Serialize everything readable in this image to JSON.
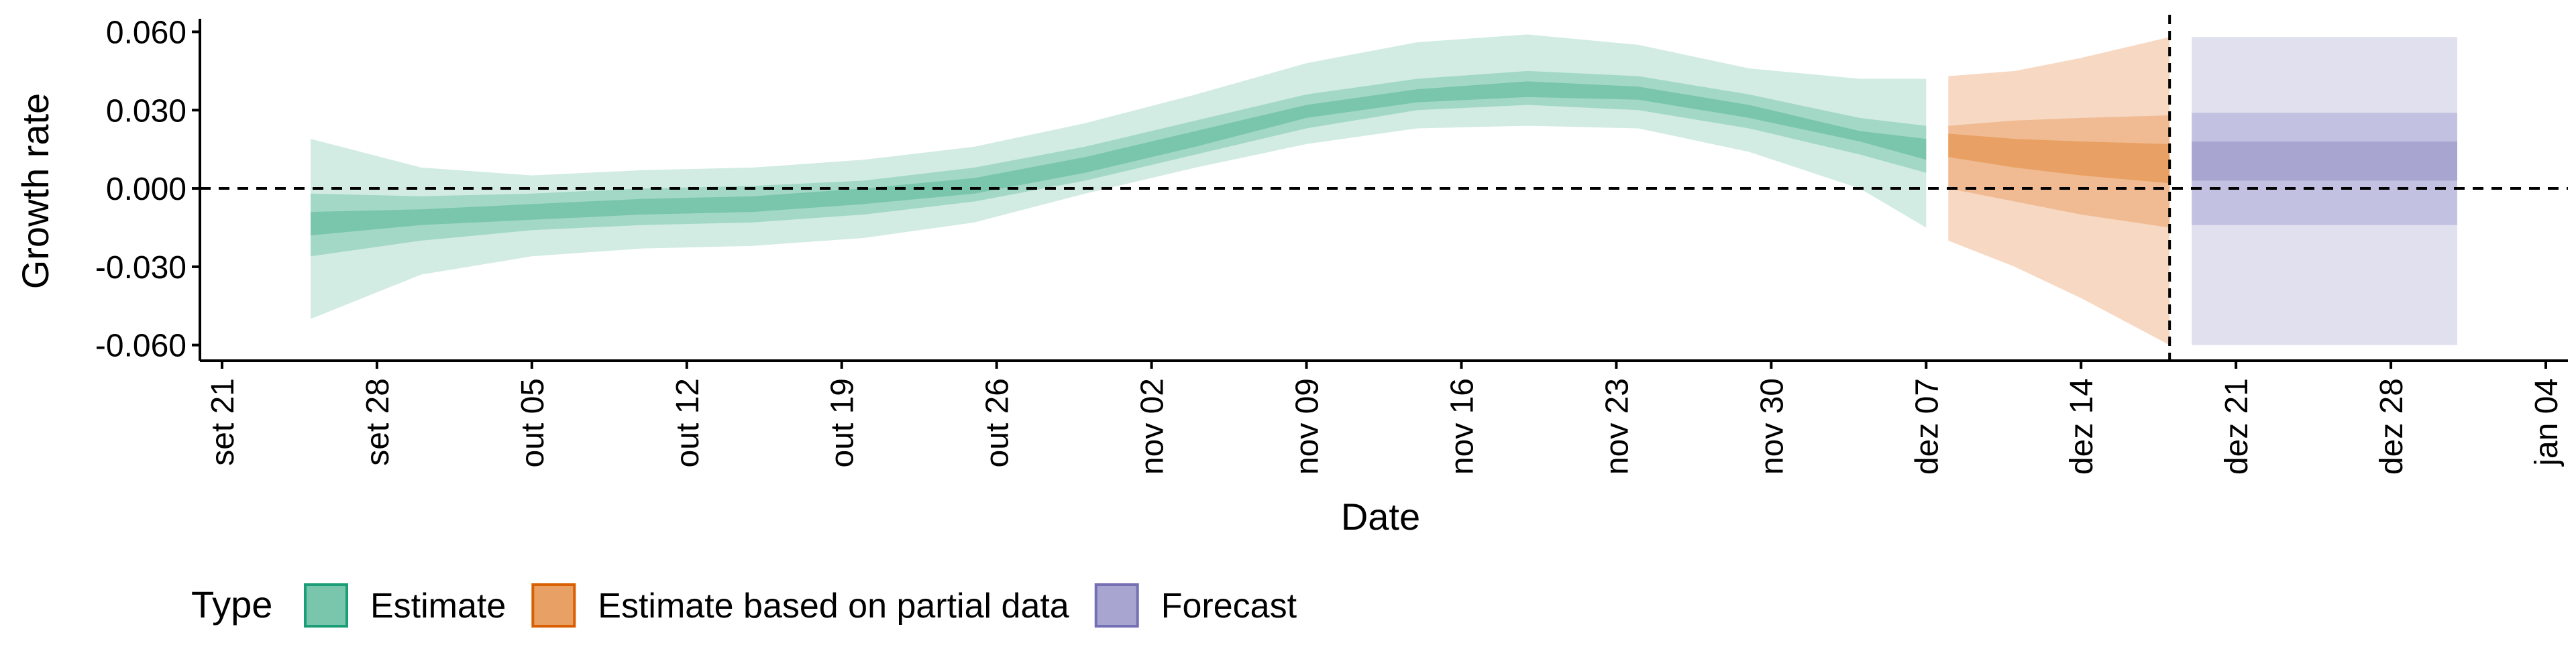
{
  "chart_data": {
    "type": "area",
    "xlabel": "Date",
    "ylabel": "Growth rate",
    "ylim": [
      -0.066,
      0.065
    ],
    "xlim": [
      "2020-09-20",
      "2021-01-05"
    ],
    "x_ticks": [
      {
        "date": "2020-09-21",
        "label": "set 21"
      },
      {
        "date": "2020-09-28",
        "label": "set 28"
      },
      {
        "date": "2020-10-05",
        "label": "out 05"
      },
      {
        "date": "2020-10-12",
        "label": "out 12"
      },
      {
        "date": "2020-10-19",
        "label": "out 19"
      },
      {
        "date": "2020-10-26",
        "label": "out 26"
      },
      {
        "date": "2020-11-02",
        "label": "nov 02"
      },
      {
        "date": "2020-11-09",
        "label": "nov 09"
      },
      {
        "date": "2020-11-16",
        "label": "nov 16"
      },
      {
        "date": "2020-11-23",
        "label": "nov 23"
      },
      {
        "date": "2020-11-30",
        "label": "nov 30"
      },
      {
        "date": "2020-12-07",
        "label": "dez 07"
      },
      {
        "date": "2020-12-14",
        "label": "dez 14"
      },
      {
        "date": "2020-12-21",
        "label": "dez 21"
      },
      {
        "date": "2020-12-28",
        "label": "dez 28"
      },
      {
        "date": "2021-01-04",
        "label": "jan 04"
      }
    ],
    "y_ticks": [
      {
        "value": 0.06,
        "label": "0.060"
      },
      {
        "value": 0.03,
        "label": "0.030"
      },
      {
        "value": 0.0,
        "label": "0.000"
      },
      {
        "value": -0.03,
        "label": "-0.030"
      },
      {
        "value": -0.06,
        "label": "-0.060"
      }
    ],
    "hline": {
      "y": 0.0,
      "style": "dashed"
    },
    "vline": {
      "x": "2020-12-18",
      "style": "dashed"
    },
    "legend": {
      "title": "Type",
      "position": "bottom-left",
      "entries": [
        {
          "label": "Estimate",
          "fill": "#7ac6ad",
          "stroke": "#1b9e77"
        },
        {
          "label": "Estimate based on partial data",
          "fill": "#e9a064",
          "stroke": "#d95f02"
        },
        {
          "label": "Forecast",
          "fill": "#a8a5d0",
          "stroke": "#7570b3"
        }
      ]
    },
    "series": [
      {
        "name": "Estimate",
        "colors": {
          "outer": "#d2ece3",
          "middle": "#a3d8c6",
          "inner": "#7ac6ad"
        },
        "x": [
          "2020-09-25",
          "2020-09-30",
          "2020-10-05",
          "2020-10-10",
          "2020-10-15",
          "2020-10-20",
          "2020-10-25",
          "2020-10-30",
          "2020-11-04",
          "2020-11-09",
          "2020-11-14",
          "2020-11-19",
          "2020-11-24",
          "2020-11-29",
          "2020-12-04",
          "2020-12-07"
        ],
        "lower_90": [
          -0.05,
          -0.033,
          -0.026,
          -0.023,
          -0.022,
          -0.019,
          -0.013,
          -0.002,
          0.008,
          0.017,
          0.023,
          0.024,
          0.023,
          0.014,
          0.0,
          -0.015
        ],
        "upper_90": [
          0.019,
          0.008,
          0.005,
          0.007,
          0.008,
          0.011,
          0.016,
          0.025,
          0.036,
          0.048,
          0.056,
          0.059,
          0.055,
          0.046,
          0.042,
          0.042
        ],
        "lower_50": [
          -0.026,
          -0.02,
          -0.016,
          -0.014,
          -0.013,
          -0.01,
          -0.005,
          0.003,
          0.013,
          0.023,
          0.03,
          0.032,
          0.03,
          0.023,
          0.013,
          0.006
        ],
        "upper_50": [
          -0.002,
          -0.003,
          -0.002,
          0.0,
          0.001,
          0.003,
          0.008,
          0.016,
          0.026,
          0.036,
          0.042,
          0.045,
          0.043,
          0.036,
          0.027,
          0.024
        ],
        "lower_20": [
          -0.018,
          -0.014,
          -0.012,
          -0.01,
          -0.009,
          -0.006,
          -0.002,
          0.006,
          0.016,
          0.027,
          0.033,
          0.035,
          0.034,
          0.027,
          0.018,
          0.011
        ],
        "upper_20": [
          -0.009,
          -0.008,
          -0.006,
          -0.004,
          -0.003,
          0.0,
          0.004,
          0.012,
          0.022,
          0.032,
          0.038,
          0.041,
          0.039,
          0.032,
          0.022,
          0.019
        ]
      },
      {
        "name": "Estimate based on partial data",
        "colors": {
          "outer": "#f7d8c2",
          "middle": "#f0bb92",
          "inner": "#e9a064"
        },
        "x": [
          "2020-12-08",
          "2020-12-11",
          "2020-12-14",
          "2020-12-18"
        ],
        "lower_90": [
          -0.02,
          -0.03,
          -0.042,
          -0.06
        ],
        "upper_90": [
          0.043,
          0.045,
          0.05,
          0.058
        ],
        "lower_50": [
          0.0,
          -0.005,
          -0.01,
          -0.015
        ],
        "upper_50": [
          0.024,
          0.026,
          0.027,
          0.028
        ],
        "lower_20": [
          0.012,
          0.008,
          0.005,
          0.002
        ],
        "upper_20": [
          0.021,
          0.019,
          0.018,
          0.017
        ]
      },
      {
        "name": "Forecast",
        "colors": {
          "outer": "#e1e0ee",
          "middle": "#c3c1e1",
          "inner": "#a8a5d0"
        },
        "x": [
          "2020-12-19",
          "2020-12-31"
        ],
        "lower_90": [
          -0.06,
          -0.06
        ],
        "upper_90": [
          0.058,
          0.058
        ],
        "lower_50": [
          -0.014,
          -0.014
        ],
        "upper_50": [
          0.029,
          0.029
        ],
        "lower_20": [
          0.003,
          0.003
        ],
        "upper_20": [
          0.018,
          0.018
        ]
      }
    ]
  }
}
